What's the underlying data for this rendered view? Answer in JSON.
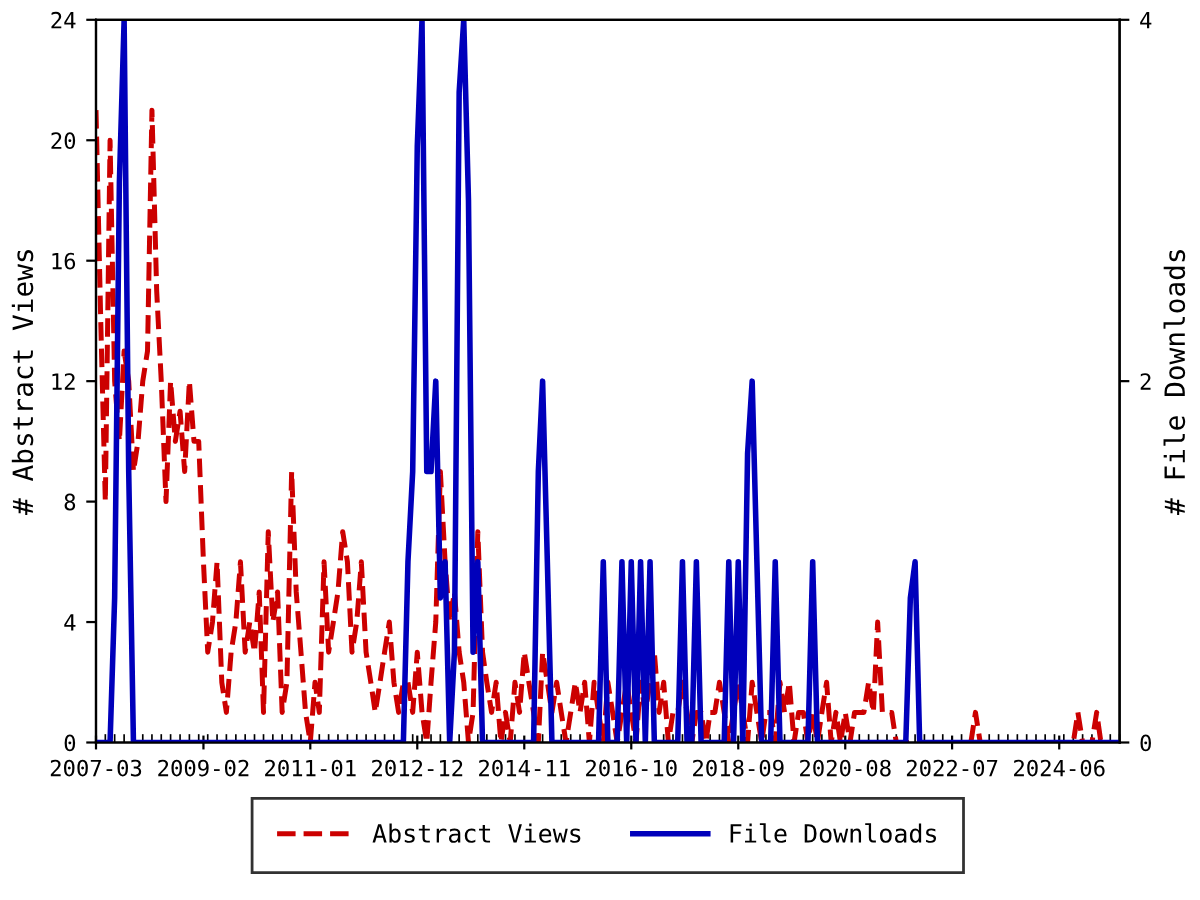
{
  "chart_data": {
    "type": "line",
    "ylabel": "# Abstract Views",
    "y2label": "# File Downloads",
    "x": [
      "2007-03",
      "2007-04",
      "2007-05",
      "2007-06",
      "2007-07",
      "2007-08",
      "2007-09",
      "2007-10",
      "2007-11",
      "2007-12",
      "2008-01",
      "2008-02",
      "2008-03",
      "2008-04",
      "2008-05",
      "2008-06",
      "2008-07",
      "2008-08",
      "2008-09",
      "2008-10",
      "2008-11",
      "2008-12",
      "2009-01",
      "2009-02",
      "2009-03",
      "2009-04",
      "2009-05",
      "2009-06",
      "2009-07",
      "2009-08",
      "2009-09",
      "2009-10",
      "2009-11",
      "2009-12",
      "2010-01",
      "2010-02",
      "2010-03",
      "2010-04",
      "2010-05",
      "2010-06",
      "2010-07",
      "2010-08",
      "2010-09",
      "2010-10",
      "2010-11",
      "2010-12",
      "2011-01",
      "2011-02",
      "2011-03",
      "2011-04",
      "2011-05",
      "2011-06",
      "2011-07",
      "2011-08",
      "2011-09",
      "2011-10",
      "2011-11",
      "2011-12",
      "2012-01",
      "2012-02",
      "2012-03",
      "2012-04",
      "2012-05",
      "2012-06",
      "2012-07",
      "2012-08",
      "2012-09",
      "2012-10",
      "2012-11",
      "2012-12",
      "2013-01",
      "2013-02",
      "2013-03",
      "2013-04",
      "2013-05",
      "2013-06",
      "2013-07",
      "2013-08",
      "2013-09",
      "2013-10",
      "2013-11",
      "2013-12",
      "2014-01",
      "2014-02",
      "2014-03",
      "2014-04",
      "2014-05",
      "2014-06",
      "2014-07",
      "2014-08",
      "2014-09",
      "2014-10",
      "2014-11",
      "2014-12",
      "2015-01",
      "2015-02",
      "2015-03",
      "2015-04",
      "2015-05",
      "2015-06",
      "2015-07",
      "2015-08",
      "2015-09",
      "2015-10",
      "2015-11",
      "2015-12",
      "2016-01",
      "2016-02",
      "2016-03",
      "2016-04",
      "2016-05",
      "2016-06",
      "2016-07",
      "2016-08",
      "2016-09",
      "2016-10",
      "2016-11",
      "2016-12",
      "2017-01",
      "2017-02",
      "2017-03",
      "2017-04",
      "2017-05",
      "2017-06",
      "2017-07",
      "2017-08",
      "2017-09",
      "2017-10",
      "2017-11",
      "2017-12",
      "2018-01",
      "2018-02",
      "2018-03",
      "2018-04",
      "2018-05",
      "2018-06",
      "2018-07",
      "2018-08",
      "2018-09",
      "2018-10",
      "2018-11",
      "2018-12",
      "2019-01",
      "2019-02",
      "2019-03",
      "2019-04",
      "2019-05",
      "2019-06",
      "2019-07",
      "2019-08",
      "2019-09",
      "2019-10",
      "2019-11",
      "2019-12",
      "2020-01",
      "2020-02",
      "2020-03",
      "2020-04",
      "2020-05",
      "2020-06",
      "2020-07",
      "2020-08",
      "2020-09",
      "2020-10",
      "2020-11",
      "2020-12",
      "2021-01",
      "2021-02",
      "2021-03",
      "2021-04",
      "2021-05",
      "2021-06",
      "2021-07",
      "2021-08",
      "2021-09",
      "2021-10",
      "2021-11",
      "2021-12",
      "2022-01",
      "2022-02",
      "2022-03",
      "2022-04",
      "2022-05",
      "2022-06",
      "2022-07",
      "2022-08",
      "2022-09",
      "2022-10",
      "2022-11",
      "2022-12",
      "2023-01",
      "2023-02",
      "2023-03",
      "2023-04",
      "2023-05",
      "2023-06",
      "2023-07",
      "2023-08",
      "2023-09",
      "2023-10",
      "2023-11",
      "2023-12",
      "2024-01",
      "2024-02",
      "2024-03",
      "2024-04",
      "2024-05",
      "2024-06",
      "2024-07",
      "2024-08",
      "2024-09",
      "2024-10",
      "2024-11",
      "2024-12",
      "2025-01",
      "2025-02",
      "2025-03",
      "2025-04",
      "2025-05",
      "2025-06",
      "2025-07"
    ],
    "xlim": [
      "2007-03",
      "2025-07"
    ],
    "xticks": [
      {
        "value": "2007-03",
        "label": "2007-03"
      },
      {
        "value": "2009-02",
        "label": "2009-02"
      },
      {
        "value": "2011-01",
        "label": "2011-01"
      },
      {
        "value": "2012-12",
        "label": "2012-12"
      },
      {
        "value": "2014-11",
        "label": "2014-11"
      },
      {
        "value": "2016-10",
        "label": "2016-10"
      },
      {
        "value": "2018-09",
        "label": "2018-09"
      },
      {
        "value": "2020-08",
        "label": "2020-08"
      },
      {
        "value": "2022-07",
        "label": "2022-07"
      },
      {
        "value": "2024-06",
        "label": "2024-06"
      }
    ],
    "ylim": [
      0,
      24
    ],
    "yticks": [
      0,
      4,
      8,
      12,
      16,
      20,
      24
    ],
    "y2lim": [
      0,
      4
    ],
    "y2ticks": [
      0,
      2,
      4
    ],
    "grid": false,
    "legend": "bottom",
    "marker": "none",
    "series": [
      {
        "name": "Abstract Views",
        "color": "#cc0000",
        "line_style": "dashed",
        "values": [
          21,
          14,
          8,
          20,
          12,
          10,
          13,
          12,
          9,
          10,
          12,
          13,
          21,
          15,
          12,
          8,
          12,
          10,
          11,
          9,
          12,
          10,
          10,
          6,
          3,
          4,
          6,
          2,
          1,
          3,
          4,
          6,
          3,
          4,
          3,
          5,
          1,
          7,
          4,
          5,
          1,
          2,
          9,
          5,
          3,
          1,
          0,
          2,
          1,
          6,
          3,
          4,
          5,
          7,
          6,
          3,
          4,
          6,
          3,
          2,
          1,
          2,
          3,
          4,
          2,
          1,
          2,
          2,
          1,
          3,
          1,
          0,
          2,
          4,
          9,
          6,
          4,
          5,
          3,
          2,
          0,
          1,
          7,
          3,
          2,
          1,
          2,
          0,
          1,
          0,
          2,
          1,
          3,
          2,
          1,
          0,
          3,
          2,
          1,
          2,
          1,
          0,
          1,
          2,
          1,
          2,
          0,
          2,
          1,
          0,
          2,
          1,
          0,
          1,
          2,
          1,
          0,
          2,
          1,
          2,
          3,
          1,
          2,
          0,
          1,
          1,
          2,
          1,
          0,
          1,
          1,
          0,
          1,
          1,
          2,
          1,
          0,
          1,
          2,
          1,
          0,
          2,
          1,
          0,
          1,
          1,
          0,
          2,
          1,
          2,
          0,
          1,
          1,
          0,
          1,
          0,
          1,
          2,
          0,
          1,
          0,
          1,
          0,
          1,
          1,
          1,
          2,
          1,
          4,
          1,
          1,
          1,
          0,
          0,
          0,
          0,
          0,
          0,
          0,
          0,
          0,
          0,
          0,
          0,
          0,
          0,
          0,
          0,
          0,
          1,
          0,
          0,
          0,
          0,
          0,
          0,
          0,
          0,
          0,
          0,
          0,
          0,
          0,
          0,
          0,
          0,
          0,
          0,
          0,
          0,
          0,
          1,
          0,
          0,
          0,
          1,
          0,
          0,
          0,
          0,
          0
        ]
      },
      {
        "name": "File Downloads",
        "color": "#0000bb",
        "line_style": "solid",
        "axis": "y2",
        "values": [
          0,
          0,
          0,
          0,
          0.8,
          3.1,
          4,
          1.5,
          0,
          0,
          0,
          0,
          0,
          0,
          0,
          0,
          0,
          0,
          0,
          0,
          0,
          0,
          0,
          0,
          0,
          0,
          0,
          0,
          0,
          0,
          0,
          0,
          0,
          0,
          0,
          0,
          0,
          0,
          0,
          0,
          0,
          0,
          0,
          0,
          0,
          0,
          0,
          0,
          0,
          0,
          0,
          0,
          0,
          0,
          0,
          0,
          0,
          0,
          0,
          0,
          0,
          0,
          0,
          0,
          0,
          0,
          0,
          1.0,
          1.5,
          3.3,
          4,
          1.5,
          1.5,
          2,
          0.8,
          1,
          0,
          0.5,
          3.6,
          4,
          3,
          0.5,
          1,
          0,
          0,
          0,
          0,
          0,
          0,
          0,
          0,
          0,
          0,
          0,
          0,
          1.5,
          2,
          1,
          0,
          0,
          0,
          0,
          0,
          0,
          0,
          0,
          0,
          0,
          0,
          1,
          0,
          0,
          0,
          1,
          0,
          1,
          0,
          1,
          0,
          1,
          0,
          0,
          0,
          0,
          0,
          0,
          1,
          0,
          0,
          1,
          0,
          0,
          0,
          0,
          0,
          0,
          1,
          0,
          1,
          0,
          1.6,
          2,
          1,
          0,
          0,
          0,
          1,
          0,
          0,
          0,
          0,
          0,
          0,
          0,
          1,
          0,
          0,
          0,
          0,
          0,
          0,
          0,
          0,
          0,
          0,
          0,
          0,
          0,
          0,
          0,
          0,
          0,
          0,
          0,
          0,
          0.8,
          1,
          0,
          0,
          0,
          0,
          0,
          0,
          0,
          0,
          0,
          0,
          0,
          0,
          0,
          0,
          0,
          0,
          0,
          0,
          0,
          0,
          0,
          0,
          0,
          0,
          0,
          0,
          0,
          0,
          0,
          0,
          0,
          0,
          0,
          0,
          0,
          0,
          0,
          0,
          0,
          0,
          0,
          0,
          0,
          0
        ]
      }
    ]
  }
}
